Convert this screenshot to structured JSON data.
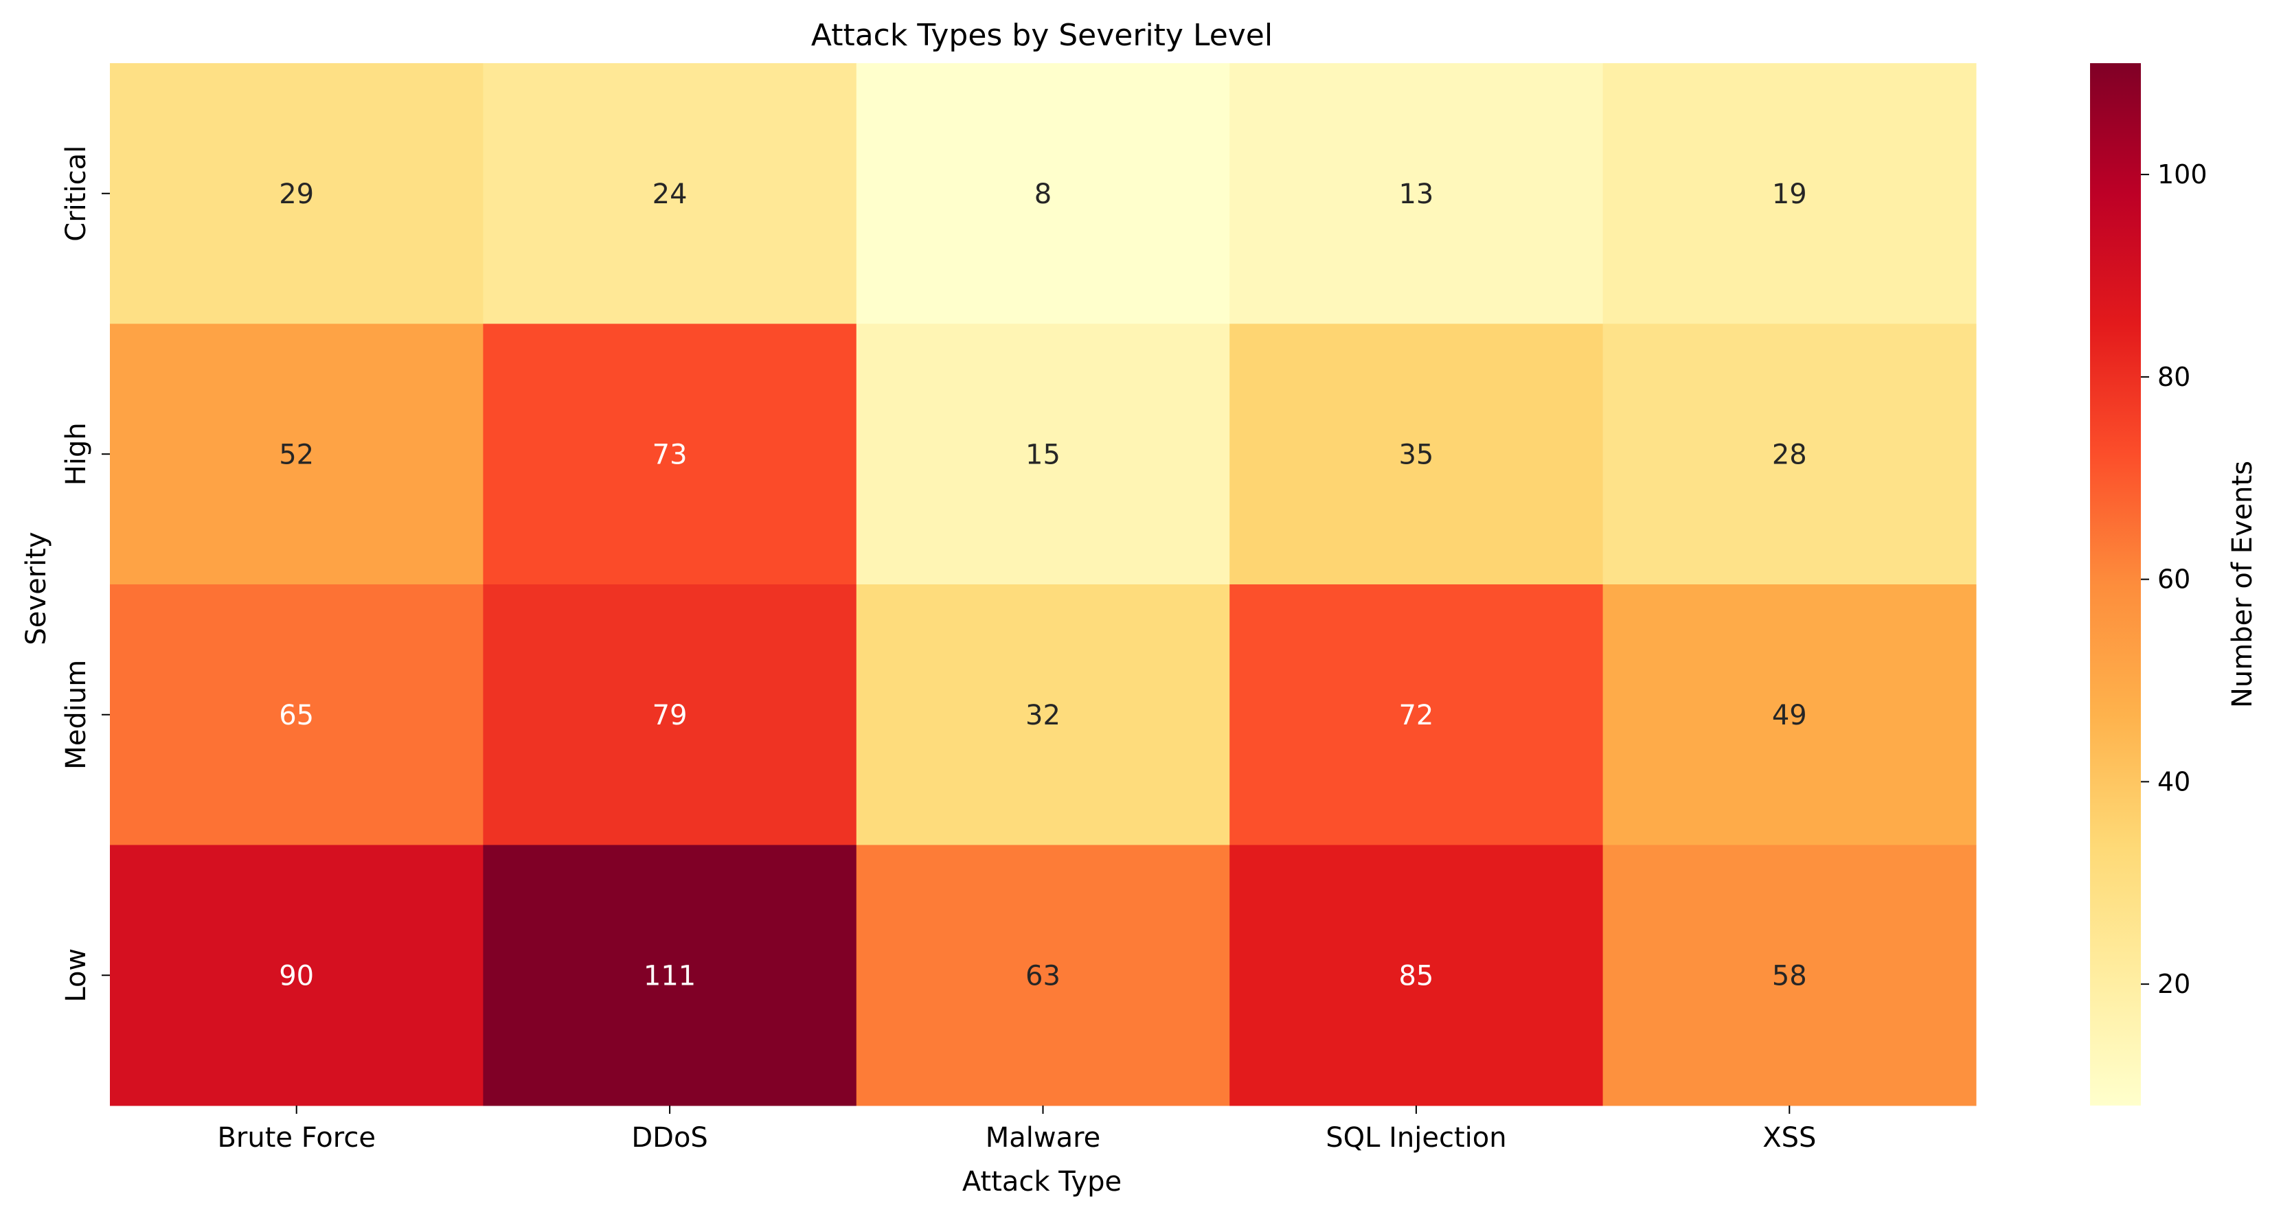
{
  "chart_data": {
    "type": "heatmap",
    "title": "Attack Types by Severity Level",
    "xlabel": "Attack Type",
    "ylabel": "Severity",
    "x_categories": [
      "Brute Force",
      "DDoS",
      "Malware",
      "SQL Injection",
      "XSS"
    ],
    "y_categories": [
      "Critical",
      "High",
      "Medium",
      "Low"
    ],
    "values": [
      [
        29,
        24,
        8,
        13,
        19
      ],
      [
        52,
        73,
        15,
        35,
        28
      ],
      [
        65,
        79,
        32,
        72,
        49
      ],
      [
        90,
        111,
        63,
        85,
        58
      ]
    ],
    "colormap": "YlOrRd",
    "colorbar": {
      "label": "Number of Events",
      "range": [
        8,
        111
      ],
      "ticks": [
        20,
        40,
        60,
        80,
        100
      ]
    },
    "annotated": true,
    "grid": false
  }
}
